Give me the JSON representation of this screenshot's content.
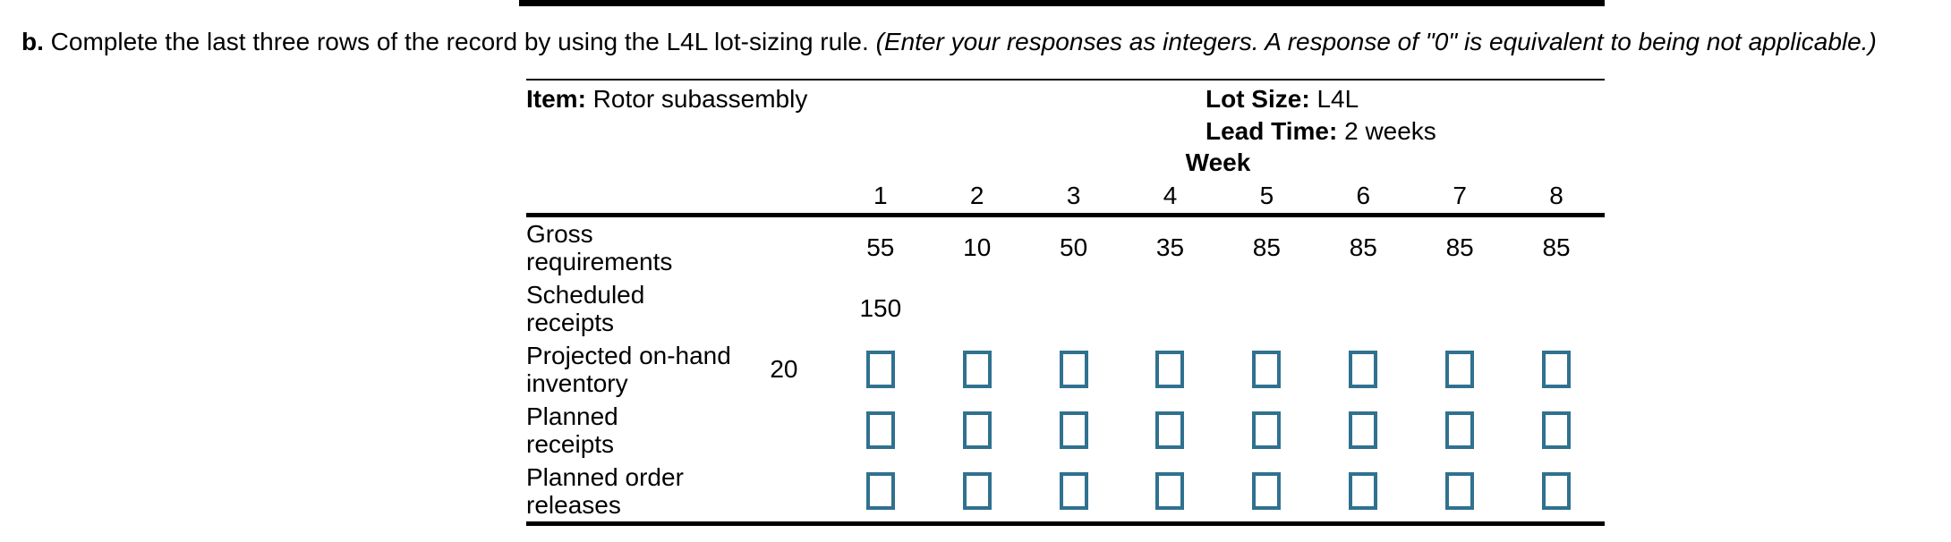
{
  "instruction": {
    "prefix": "b.",
    "text": " Complete the last three rows of the record by using the L4L lot-sizing rule. ",
    "note": "(Enter your responses as integers. A response of \"0\" is equivalent to being not applicable.)"
  },
  "record": {
    "item_label": "Item:",
    "item_value": " Rotor subassembly",
    "lot_size_label": "Lot Size:",
    "lot_size_value": " L4L",
    "lead_time_label": "Lead Time:",
    "lead_time_value": " 2 weeks",
    "week_label": "Week",
    "week_numbers": [
      "1",
      "2",
      "3",
      "4",
      "5",
      "6",
      "7",
      "8"
    ],
    "rows": [
      {
        "line1": "Gross",
        "line2": "requirements",
        "lead": "",
        "values": [
          "55",
          "10",
          "50",
          "35",
          "85",
          "85",
          "85",
          "85"
        ]
      },
      {
        "line1": "Scheduled",
        "line2": "receipts",
        "lead": "",
        "values": [
          "150",
          "",
          "",
          "",
          "",
          "",
          "",
          ""
        ]
      },
      {
        "line1": "Projected on-hand",
        "line2": "inventory",
        "lead": "20"
      },
      {
        "line1": "Planned",
        "line2": "receipts",
        "lead": ""
      },
      {
        "line1": "Planned order",
        "line2": "releases",
        "lead": ""
      }
    ]
  },
  "colors": {
    "input_border": "#30718f",
    "rule": "#000000"
  }
}
